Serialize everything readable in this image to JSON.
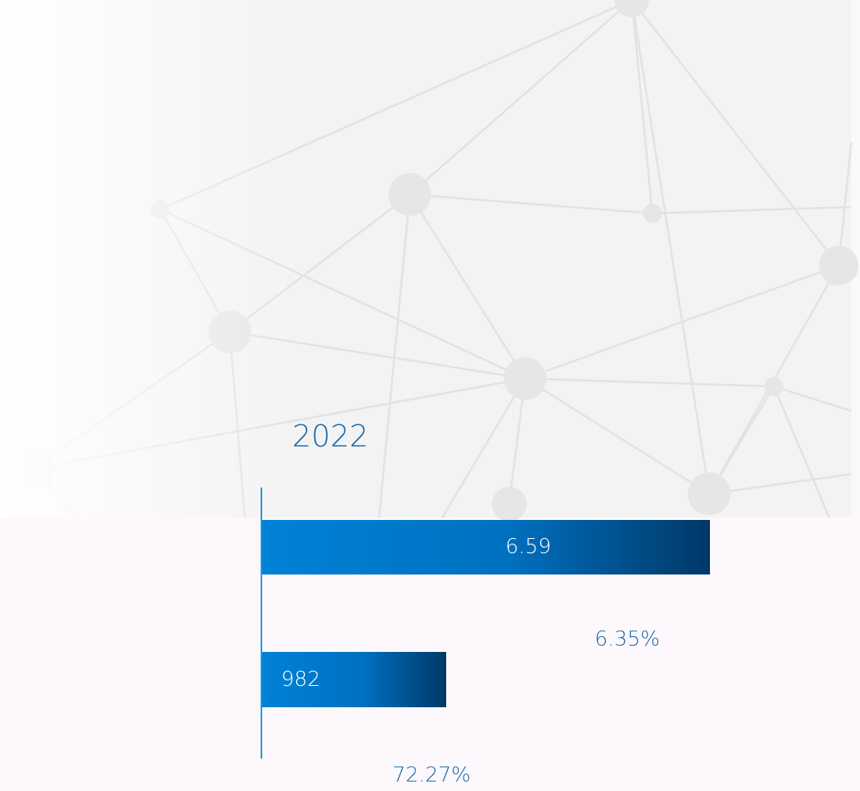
{
  "year": "2022",
  "items": [
    {
      "value": "6.59",
      "change": "6.35%"
    },
    {
      "value": "982",
      "change": "72.27%"
    }
  ]
}
